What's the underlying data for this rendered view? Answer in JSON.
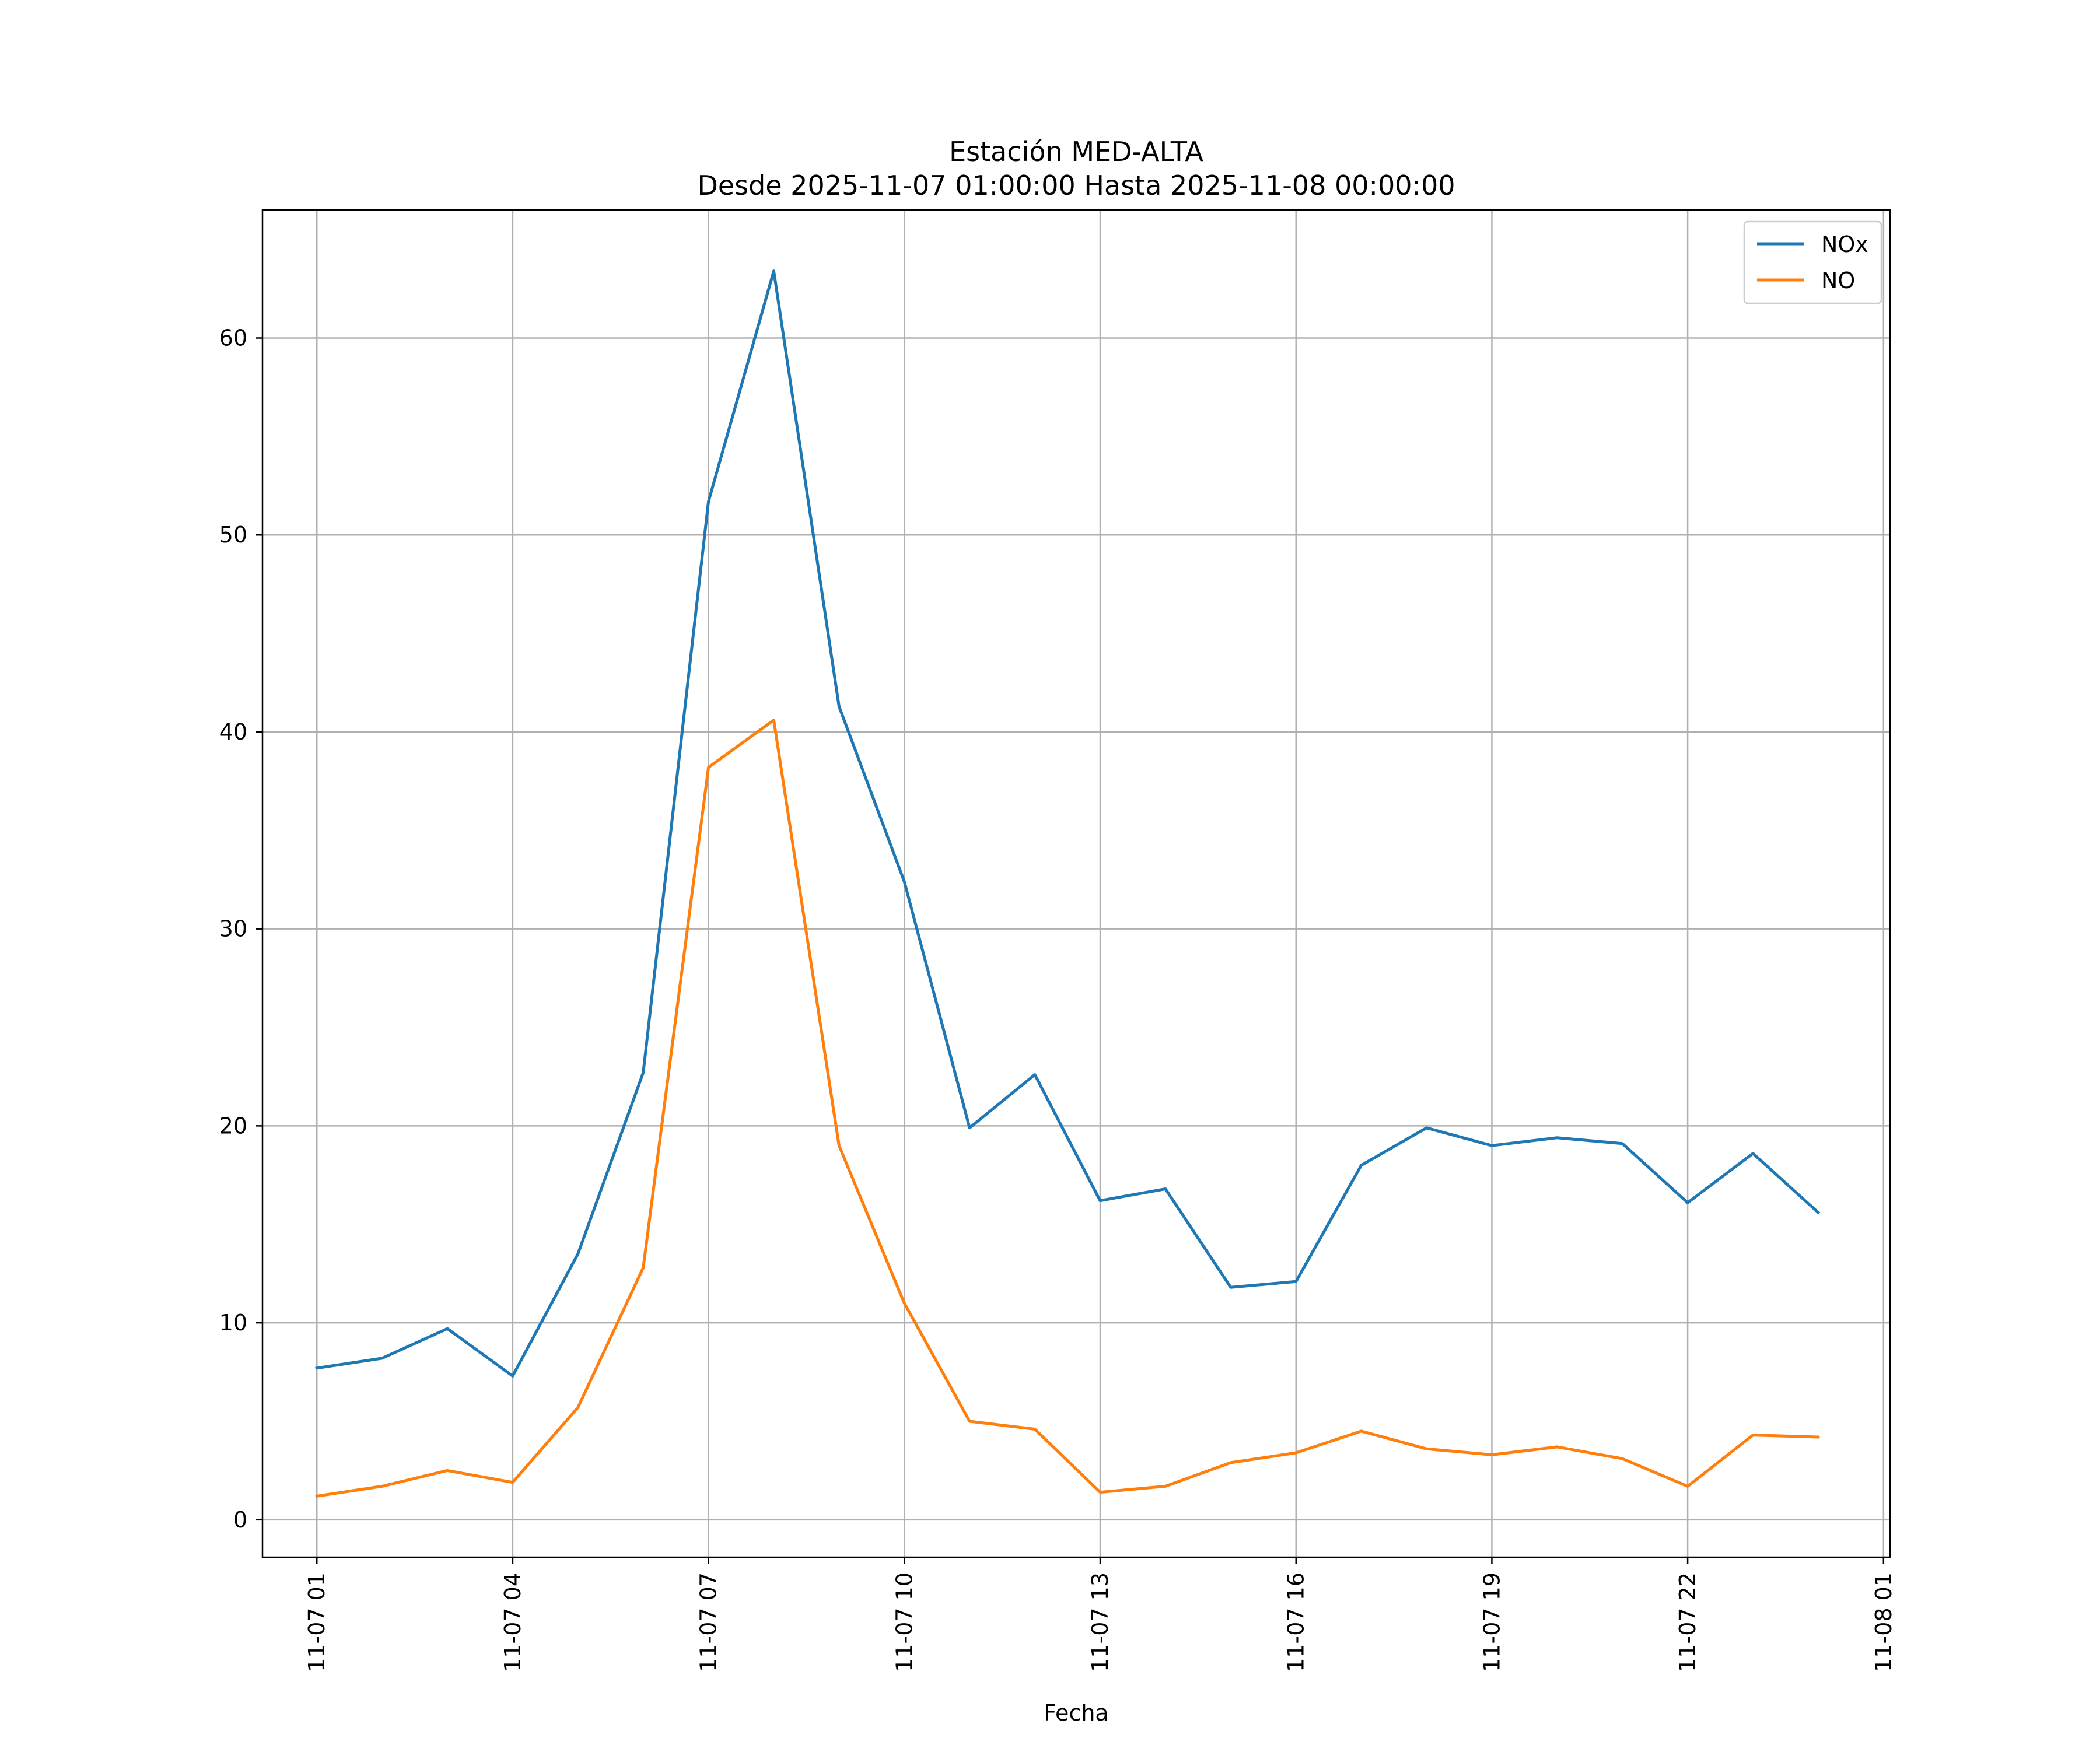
{
  "chart_data": {
    "type": "line",
    "title": "Estación MED-ALTA",
    "subtitle": "Desde 2025-11-07 01:00:00 Hasta 2025-11-08 00:00:00",
    "xlabel": "Fecha",
    "ylabel": "",
    "x": [
      "2025-11-07 01:00",
      "2025-11-07 02:00",
      "2025-11-07 03:00",
      "2025-11-07 04:00",
      "2025-11-07 05:00",
      "2025-11-07 06:00",
      "2025-11-07 07:00",
      "2025-11-07 08:00",
      "2025-11-07 09:00",
      "2025-11-07 10:00",
      "2025-11-07 11:00",
      "2025-11-07 12:00",
      "2025-11-07 13:00",
      "2025-11-07 14:00",
      "2025-11-07 15:00",
      "2025-11-07 16:00",
      "2025-11-07 17:00",
      "2025-11-07 18:00",
      "2025-11-07 19:00",
      "2025-11-07 20:00",
      "2025-11-07 21:00",
      "2025-11-07 22:00",
      "2025-11-07 23:00",
      "2025-11-08 00:00"
    ],
    "series": [
      {
        "name": "NOx",
        "color": "#1f77b4",
        "values": [
          7.7,
          8.2,
          9.7,
          7.3,
          13.5,
          22.7,
          51.7,
          63.4,
          41.3,
          32.4,
          19.9,
          22.6,
          16.2,
          16.8,
          11.8,
          12.1,
          18.0,
          19.9,
          19.0,
          19.4,
          19.1,
          16.1,
          18.6,
          15.6
        ]
      },
      {
        "name": "NO",
        "color": "#ff7f0e",
        "values": [
          1.2,
          1.7,
          2.5,
          1.9,
          5.7,
          12.8,
          38.2,
          40.6,
          19.0,
          11.0,
          5.0,
          4.6,
          1.4,
          1.7,
          2.9,
          3.4,
          4.5,
          3.6,
          3.3,
          3.7,
          3.1,
          1.7,
          4.3,
          4.2
        ]
      }
    ],
    "xticks": [
      "11-07 01",
      "11-07 04",
      "11-07 07",
      "11-07 10",
      "11-07 13",
      "11-07 16",
      "11-07 19",
      "11-07 22",
      "11-08 01"
    ],
    "yticks": [
      "0",
      "10",
      "20",
      "30",
      "40",
      "50",
      "60"
    ],
    "ylim": [
      -1.9,
      66.5
    ],
    "xlim": [
      "2025-11-07 00:10",
      "2025-11-08 01:06"
    ],
    "grid": true,
    "legend": "top-right"
  }
}
